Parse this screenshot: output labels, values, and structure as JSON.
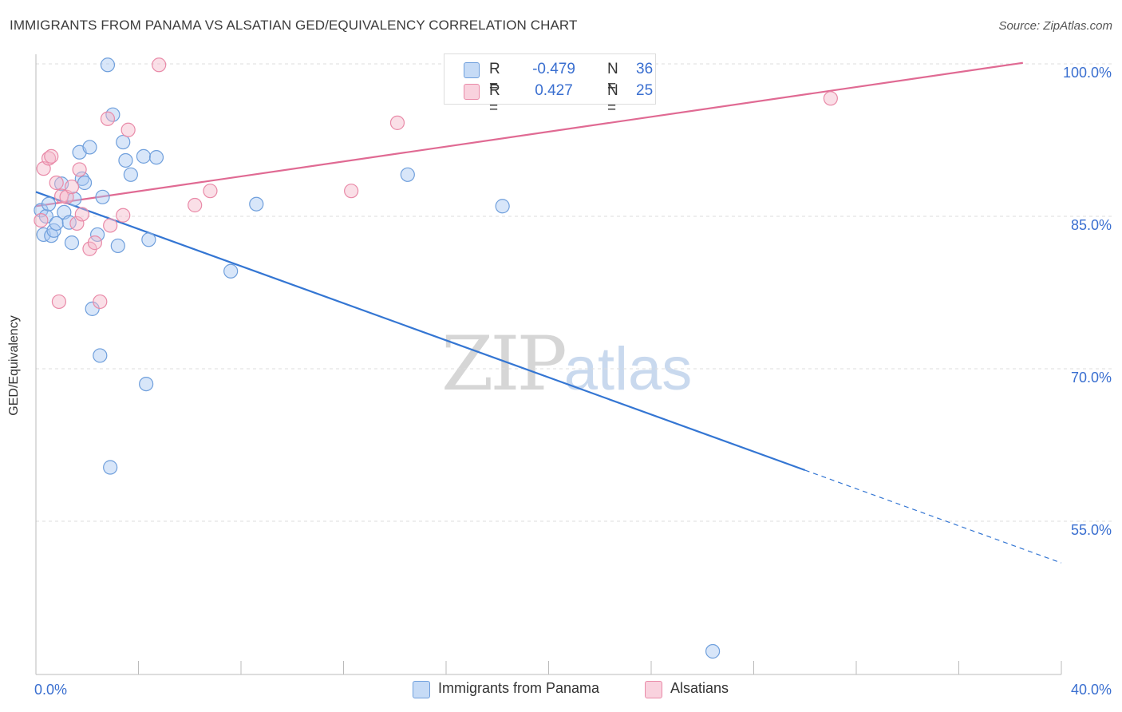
{
  "title": "IMMIGRANTS FROM PANAMA VS ALSATIAN GED/EQUIVALENCY CORRELATION CHART",
  "source": "Source: ZipAtlas.com",
  "watermark": {
    "zip": "ZIP",
    "atlas": "atlas"
  },
  "legend": {
    "rows": [
      {
        "r_label": "R =",
        "r_value": "-0.479",
        "n_label": "N =",
        "n_value": "36",
        "color": "#a9c8f2"
      },
      {
        "r_label": "R =",
        "r_value": "0.427",
        "n_label": "N =",
        "n_value": "25",
        "color": "#f4b8ca"
      }
    ]
  },
  "bottom_legend": [
    {
      "label": "Immigrants from Panama",
      "color": "#a9c8f2"
    },
    {
      "label": "Alsatians",
      "color": "#f4b8ca"
    }
  ],
  "chart_data": {
    "type": "scatter",
    "title": "IMMIGRANTS FROM PANAMA VS ALSATIAN GED/EQUIVALENCY CORRELATION CHART",
    "xlabel": "",
    "ylabel": "GED/Equivalency",
    "xlim": [
      0,
      40
    ],
    "ylim": [
      40,
      102
    ],
    "x_tick_labels": [
      "0.0%",
      "40.0%"
    ],
    "y_ticks": [
      55,
      70,
      85,
      100
    ],
    "y_tick_labels": [
      "55.0%",
      "70.0%",
      "85.0%",
      "100.0%"
    ],
    "grid": true,
    "legend_position": "top-center",
    "series": [
      {
        "name": "Immigrants from Panama",
        "color": "#a9c8f2",
        "edge_color": "#6f9fdc",
        "line_color": "#3476d3",
        "trend": {
          "x_start": 0.0,
          "y_start": 87.4,
          "x_solid_end": 30.0,
          "x_end": 40.0,
          "y_end": 50.9
        },
        "points": [
          [
            0.2,
            85.6
          ],
          [
            0.3,
            83.2
          ],
          [
            0.4,
            85.0
          ],
          [
            0.5,
            86.2
          ],
          [
            0.6,
            83.1
          ],
          [
            0.7,
            83.6
          ],
          [
            0.8,
            84.3
          ],
          [
            1.0,
            88.2
          ],
          [
            1.1,
            85.4
          ],
          [
            1.3,
            84.4
          ],
          [
            1.4,
            82.4
          ],
          [
            1.5,
            86.7
          ],
          [
            1.7,
            91.3
          ],
          [
            1.8,
            88.7
          ],
          [
            1.9,
            88.3
          ],
          [
            2.1,
            91.8
          ],
          [
            2.2,
            75.9
          ],
          [
            2.4,
            83.2
          ],
          [
            2.5,
            71.3
          ],
          [
            2.6,
            86.9
          ],
          [
            2.8,
            99.9
          ],
          [
            2.9,
            60.3
          ],
          [
            3.0,
            95.0
          ],
          [
            3.2,
            82.1
          ],
          [
            3.4,
            92.3
          ],
          [
            3.5,
            90.5
          ],
          [
            3.7,
            89.1
          ],
          [
            4.2,
            90.9
          ],
          [
            4.3,
            68.5
          ],
          [
            4.4,
            82.7
          ],
          [
            4.7,
            90.8
          ],
          [
            7.6,
            79.6
          ],
          [
            8.6,
            86.2
          ],
          [
            14.5,
            89.1
          ],
          [
            18.2,
            86.0
          ],
          [
            26.4,
            42.2
          ]
        ]
      },
      {
        "name": "Alsatians",
        "color": "#f4b8ca",
        "edge_color": "#e98aa8",
        "line_color": "#e06a93",
        "trend": {
          "x_start": 0.0,
          "y_start": 86.0,
          "x_end": 38.5,
          "y_end": 100.1
        },
        "points": [
          [
            0.2,
            84.6
          ],
          [
            0.3,
            89.7
          ],
          [
            0.5,
            90.7
          ],
          [
            0.6,
            90.9
          ],
          [
            0.8,
            88.3
          ],
          [
            0.9,
            76.6
          ],
          [
            1.0,
            87.0
          ],
          [
            1.2,
            86.9
          ],
          [
            1.4,
            87.9
          ],
          [
            1.6,
            84.3
          ],
          [
            1.7,
            89.6
          ],
          [
            1.8,
            85.2
          ],
          [
            2.1,
            81.8
          ],
          [
            2.3,
            82.4
          ],
          [
            2.5,
            76.6
          ],
          [
            2.8,
            94.6
          ],
          [
            2.9,
            84.1
          ],
          [
            3.4,
            85.1
          ],
          [
            3.6,
            93.5
          ],
          [
            4.8,
            99.9
          ],
          [
            6.2,
            86.1
          ],
          [
            6.8,
            87.5
          ],
          [
            12.3,
            87.5
          ],
          [
            14.1,
            94.2
          ],
          [
            31.0,
            96.6
          ]
        ]
      }
    ]
  }
}
